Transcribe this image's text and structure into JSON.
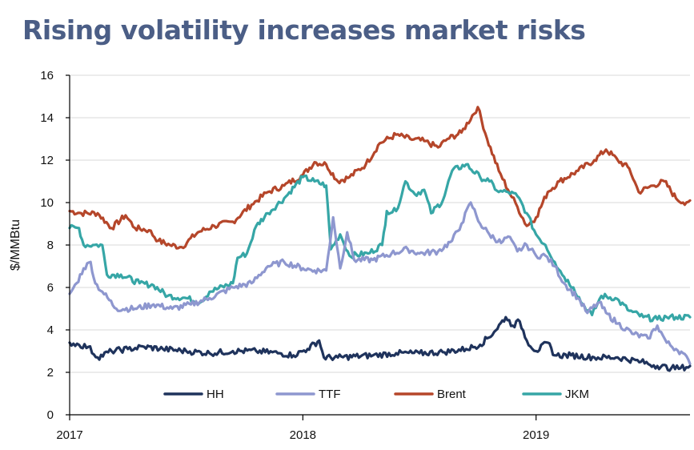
{
  "chart_data": {
    "type": "line",
    "title": "Rising volatility increases market risks",
    "ylabel": "$/MMBtu",
    "xlabel": "",
    "ylim": [
      0,
      16
    ],
    "xlim": [
      2017.0,
      2019.66
    ],
    "y_ticks": [
      "0",
      "2",
      "4",
      "6",
      "8",
      "10",
      "12",
      "14",
      "16"
    ],
    "x_ticks": [
      {
        "label": "2017",
        "value": 2017.0
      },
      {
        "label": "2018",
        "value": 2018.0
      },
      {
        "label": "2019",
        "value": 2019.0
      }
    ],
    "grid": "horizontal",
    "legend_position": "bottom-inside",
    "series": [
      {
        "name": "HH",
        "color": "#1f335c",
        "points": [
          [
            2017.0,
            3.4
          ],
          [
            2017.04,
            3.3
          ],
          [
            2017.08,
            3.2
          ],
          [
            2017.12,
            2.7
          ],
          [
            2017.18,
            3.0
          ],
          [
            2017.25,
            3.1
          ],
          [
            2017.32,
            3.2
          ],
          [
            2017.4,
            3.1
          ],
          [
            2017.5,
            3.0
          ],
          [
            2017.6,
            2.9
          ],
          [
            2017.7,
            3.0
          ],
          [
            2017.8,
            3.0
          ],
          [
            2017.9,
            2.9
          ],
          [
            2017.96,
            2.8
          ],
          [
            2018.02,
            3.1
          ],
          [
            2018.07,
            3.5
          ],
          [
            2018.09,
            2.7
          ],
          [
            2018.15,
            2.7
          ],
          [
            2018.3,
            2.8
          ],
          [
            2018.4,
            2.9
          ],
          [
            2018.5,
            2.9
          ],
          [
            2018.6,
            2.95
          ],
          [
            2018.7,
            3.1
          ],
          [
            2018.76,
            3.3
          ],
          [
            2018.82,
            3.9
          ],
          [
            2018.87,
            4.6
          ],
          [
            2018.9,
            4.2
          ],
          [
            2018.93,
            4.4
          ],
          [
            2018.96,
            3.5
          ],
          [
            2019.0,
            3.0
          ],
          [
            2019.05,
            3.4
          ],
          [
            2019.08,
            2.8
          ],
          [
            2019.15,
            2.8
          ],
          [
            2019.25,
            2.7
          ],
          [
            2019.35,
            2.7
          ],
          [
            2019.45,
            2.5
          ],
          [
            2019.52,
            2.3
          ],
          [
            2019.58,
            2.2
          ],
          [
            2019.62,
            2.2
          ],
          [
            2019.66,
            2.3
          ]
        ]
      },
      {
        "name": "TTF",
        "color": "#8e97cf",
        "points": [
          [
            2017.0,
            5.7
          ],
          [
            2017.03,
            6.2
          ],
          [
            2017.06,
            6.9
          ],
          [
            2017.09,
            7.2
          ],
          [
            2017.11,
            6.2
          ],
          [
            2017.14,
            5.8
          ],
          [
            2017.2,
            5.0
          ],
          [
            2017.28,
            5.0
          ],
          [
            2017.36,
            5.2
          ],
          [
            2017.44,
            5.0
          ],
          [
            2017.52,
            5.2
          ],
          [
            2017.6,
            5.5
          ],
          [
            2017.7,
            6.0
          ],
          [
            2017.78,
            6.2
          ],
          [
            2017.85,
            7.0
          ],
          [
            2017.92,
            7.2
          ],
          [
            2018.0,
            6.9
          ],
          [
            2018.05,
            6.8
          ],
          [
            2018.1,
            6.8
          ],
          [
            2018.13,
            9.3
          ],
          [
            2018.16,
            6.9
          ],
          [
            2018.19,
            8.6
          ],
          [
            2018.22,
            7.3
          ],
          [
            2018.3,
            7.3
          ],
          [
            2018.38,
            7.6
          ],
          [
            2018.45,
            7.8
          ],
          [
            2018.5,
            7.6
          ],
          [
            2018.58,
            7.7
          ],
          [
            2018.64,
            8.2
          ],
          [
            2018.68,
            9.0
          ],
          [
            2018.72,
            10.0
          ],
          [
            2018.76,
            9.0
          ],
          [
            2018.8,
            8.5
          ],
          [
            2018.85,
            8.1
          ],
          [
            2018.88,
            8.4
          ],
          [
            2018.92,
            7.7
          ],
          [
            2018.96,
            8.0
          ],
          [
            2019.0,
            7.5
          ],
          [
            2019.04,
            7.5
          ],
          [
            2019.08,
            7.0
          ],
          [
            2019.12,
            6.2
          ],
          [
            2019.18,
            5.5
          ],
          [
            2019.22,
            4.8
          ],
          [
            2019.27,
            5.3
          ],
          [
            2019.3,
            4.8
          ],
          [
            2019.35,
            4.3
          ],
          [
            2019.42,
            3.8
          ],
          [
            2019.48,
            3.6
          ],
          [
            2019.52,
            4.2
          ],
          [
            2019.56,
            3.4
          ],
          [
            2019.6,
            3.1
          ],
          [
            2019.63,
            2.9
          ],
          [
            2019.66,
            2.4
          ]
        ]
      },
      {
        "name": "Brent",
        "color": "#b5462a",
        "points": [
          [
            2017.0,
            9.6
          ],
          [
            2017.05,
            9.5
          ],
          [
            2017.12,
            9.5
          ],
          [
            2017.18,
            8.8
          ],
          [
            2017.24,
            9.4
          ],
          [
            2017.28,
            8.8
          ],
          [
            2017.34,
            8.7
          ],
          [
            2017.38,
            8.2
          ],
          [
            2017.43,
            8.0
          ],
          [
            2017.48,
            7.9
          ],
          [
            2017.55,
            8.6
          ],
          [
            2017.62,
            8.9
          ],
          [
            2017.7,
            9.1
          ],
          [
            2017.78,
            9.9
          ],
          [
            2017.85,
            10.5
          ],
          [
            2017.92,
            10.8
          ],
          [
            2018.0,
            11.3
          ],
          [
            2018.05,
            11.9
          ],
          [
            2018.1,
            11.8
          ],
          [
            2018.15,
            11.0
          ],
          [
            2018.2,
            11.2
          ],
          [
            2018.27,
            11.8
          ],
          [
            2018.33,
            12.8
          ],
          [
            2018.4,
            13.2
          ],
          [
            2018.46,
            13.0
          ],
          [
            2018.52,
            12.9
          ],
          [
            2018.58,
            12.6
          ],
          [
            2018.62,
            13.0
          ],
          [
            2018.68,
            13.3
          ],
          [
            2018.75,
            14.5
          ],
          [
            2018.79,
            13.0
          ],
          [
            2018.84,
            11.5
          ],
          [
            2018.88,
            10.6
          ],
          [
            2018.92,
            9.8
          ],
          [
            2018.96,
            8.9
          ],
          [
            2019.0,
            9.3
          ],
          [
            2019.05,
            10.5
          ],
          [
            2019.1,
            11.0
          ],
          [
            2019.18,
            11.5
          ],
          [
            2019.25,
            12.0
          ],
          [
            2019.3,
            12.5
          ],
          [
            2019.35,
            12.0
          ],
          [
            2019.4,
            11.6
          ],
          [
            2019.44,
            10.5
          ],
          [
            2019.5,
            10.8
          ],
          [
            2019.55,
            11.0
          ],
          [
            2019.6,
            10.2
          ],
          [
            2019.63,
            10.0
          ],
          [
            2019.66,
            10.1
          ]
        ]
      },
      {
        "name": "JKM",
        "color": "#36a6a6",
        "points": [
          [
            2017.0,
            8.8
          ],
          [
            2017.04,
            8.8
          ],
          [
            2017.06,
            8.0
          ],
          [
            2017.1,
            8.0
          ],
          [
            2017.14,
            8.0
          ],
          [
            2017.16,
            6.6
          ],
          [
            2017.22,
            6.6
          ],
          [
            2017.3,
            6.2
          ],
          [
            2017.36,
            6.1
          ],
          [
            2017.42,
            5.6
          ],
          [
            2017.5,
            5.5
          ],
          [
            2017.56,
            5.3
          ],
          [
            2017.6,
            5.8
          ],
          [
            2017.7,
            6.2
          ],
          [
            2017.72,
            7.4
          ],
          [
            2017.76,
            7.6
          ],
          [
            2017.8,
            8.9
          ],
          [
            2017.85,
            9.5
          ],
          [
            2017.92,
            10.2
          ],
          [
            2018.0,
            11.2
          ],
          [
            2018.05,
            11.0
          ],
          [
            2018.1,
            10.8
          ],
          [
            2018.12,
            7.8
          ],
          [
            2018.16,
            8.5
          ],
          [
            2018.2,
            7.5
          ],
          [
            2018.28,
            7.6
          ],
          [
            2018.34,
            8.0
          ],
          [
            2018.36,
            9.6
          ],
          [
            2018.4,
            9.6
          ],
          [
            2018.44,
            11.0
          ],
          [
            2018.48,
            10.4
          ],
          [
            2018.52,
            10.6
          ],
          [
            2018.55,
            9.5
          ],
          [
            2018.6,
            10.1
          ],
          [
            2018.64,
            11.5
          ],
          [
            2018.7,
            11.8
          ],
          [
            2018.76,
            11.2
          ],
          [
            2018.8,
            11.0
          ],
          [
            2018.84,
            10.5
          ],
          [
            2018.88,
            10.5
          ],
          [
            2018.92,
            10.3
          ],
          [
            2018.96,
            9.5
          ],
          [
            2019.0,
            8.5
          ],
          [
            2019.04,
            8.0
          ],
          [
            2019.08,
            7.2
          ],
          [
            2019.12,
            6.5
          ],
          [
            2019.16,
            6.0
          ],
          [
            2019.2,
            5.2
          ],
          [
            2019.24,
            4.7
          ],
          [
            2019.28,
            5.6
          ],
          [
            2019.34,
            5.5
          ],
          [
            2019.4,
            4.9
          ],
          [
            2019.46,
            4.6
          ],
          [
            2019.52,
            4.5
          ],
          [
            2019.56,
            4.6
          ],
          [
            2019.6,
            4.6
          ],
          [
            2019.66,
            4.6
          ]
        ]
      }
    ]
  }
}
